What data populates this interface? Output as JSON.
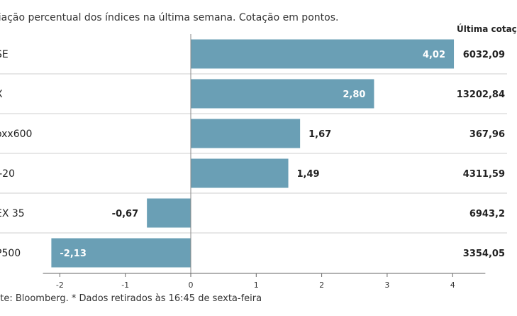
{
  "subtitle": "riação percentual dos índices na última semana. Cotação em pontos.",
  "last_quote_header": "Última cotaç",
  "source": "nte: Bloomberg.  * Dados retirados às 16:45 de sexta-feira",
  "colors": {
    "bar": "#6a9fb5",
    "row_line": "#cfcfcf",
    "axis": "#666666"
  },
  "chart_data": {
    "type": "bar",
    "orientation": "horizontal",
    "categories": [
      "SE",
      "X",
      "oxx600",
      "I-20",
      "EX 35",
      "P500"
    ],
    "values": [
      4.02,
      2.8,
      1.67,
      1.49,
      -0.67,
      -2.13
    ],
    "value_labels": [
      "4,02",
      "2,80",
      "1,67",
      "1,49",
      "-0,67",
      "-2,13"
    ],
    "last_quote": [
      "6032,09",
      "13202,84",
      "367,96",
      "4311,59",
      "6943,2",
      "3354,05"
    ],
    "xlim": [
      -2.15,
      4.5
    ],
    "xticks": [
      -2,
      -1,
      0,
      1,
      2,
      3,
      4
    ],
    "xtick_labels": [
      "-2",
      "-1",
      "0",
      "1",
      "2",
      "3",
      "4"
    ],
    "grid": false
  }
}
